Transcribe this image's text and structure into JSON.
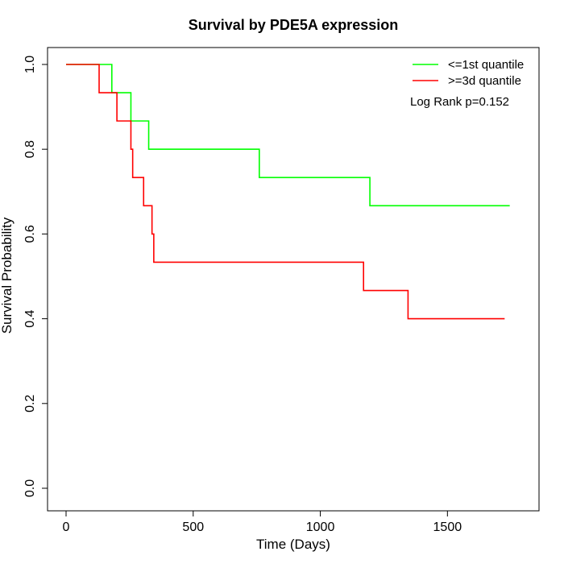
{
  "chart_data": {
    "type": "line",
    "step": true,
    "title": "Survival by PDE5A expression",
    "xlabel": "Time (Days)",
    "ylabel": "Survival Probability",
    "xlim": [
      0,
      1800
    ],
    "ylim": [
      0,
      1
    ],
    "x_ticks": [
      0,
      500,
      1000,
      1500
    ],
    "x_tick_labels": [
      "0",
      "500",
      "1000",
      "1500"
    ],
    "y_ticks": [
      0,
      0.2,
      0.4,
      0.6,
      0.8,
      1
    ],
    "y_tick_labels": [
      "0.0",
      "0.2",
      "0.4",
      "0.6",
      "0.8",
      "1.0"
    ],
    "grid": false,
    "legend_position": "top-right",
    "annotation": "Log Rank p=0.152",
    "series": [
      {
        "name": "<=1st quantile",
        "color": "#00ff00",
        "x": [
          0,
          180,
          255,
          325,
          760,
          1195,
          1745
        ],
        "y": [
          1.0,
          0.9333,
          0.8667,
          0.8,
          0.7333,
          0.6667,
          0.6667
        ]
      },
      {
        "name": ">=3d quantile",
        "color": "#ff0000",
        "x": [
          0,
          130,
          200,
          255,
          262,
          305,
          338,
          345,
          1170,
          1345,
          1725
        ],
        "y": [
          1.0,
          0.9333,
          0.8667,
          0.8,
          0.7333,
          0.6667,
          0.6,
          0.5333,
          0.4667,
          0.4,
          0.4
        ]
      }
    ]
  }
}
